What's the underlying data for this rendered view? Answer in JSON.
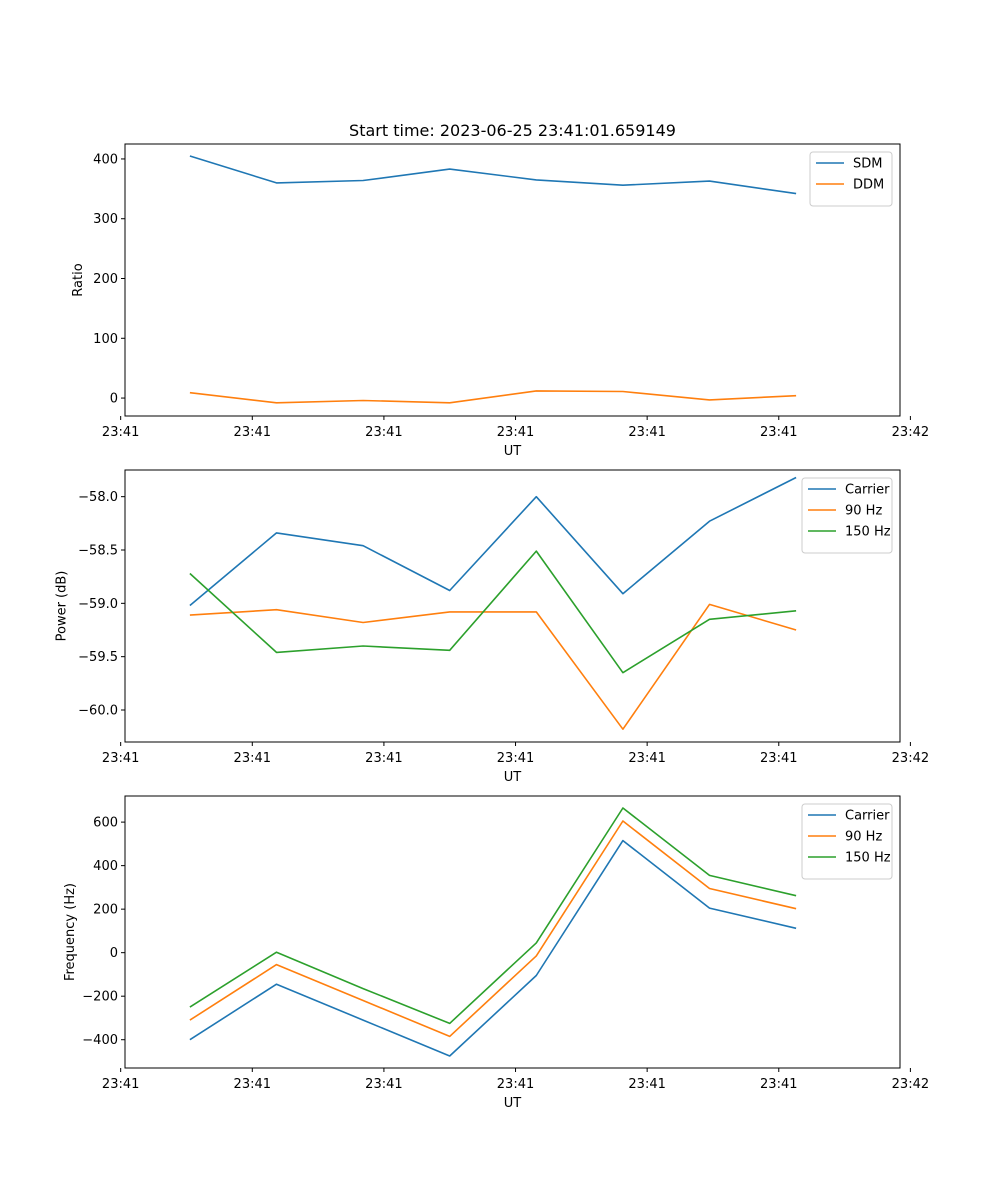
{
  "chart_data": [
    {
      "type": "line",
      "title": "Start time: 2023-06-25 23:41:01.659149",
      "xlabel": "UT",
      "ylabel": "Ratio",
      "x": [
        1,
        2,
        3,
        4,
        5,
        6,
        7,
        8
      ],
      "xlim": [
        0.25,
        9.2
      ],
      "xticks": [
        {
          "v": 0.2,
          "label": "23:41"
        },
        {
          "v": 1.72,
          "label": "23:41"
        },
        {
          "v": 3.24,
          "label": "23:41"
        },
        {
          "v": 4.76,
          "label": "23:41"
        },
        {
          "v": 6.28,
          "label": "23:41"
        },
        {
          "v": 7.8,
          "label": "23:41"
        },
        {
          "v": 9.32,
          "label": "23:42"
        }
      ],
      "ylim": [
        -30,
        425
      ],
      "yticks": [
        {
          "v": 0,
          "label": "0"
        },
        {
          "v": 100,
          "label": "100"
        },
        {
          "v": 200,
          "label": "200"
        },
        {
          "v": 300,
          "label": "300"
        },
        {
          "v": 400,
          "label": "400"
        }
      ],
      "grid": false,
      "legend": "upper right",
      "series": [
        {
          "name": "SDM",
          "color": "#1f77b4",
          "values": [
            405,
            360,
            364,
            383,
            365,
            356,
            363,
            342
          ]
        },
        {
          "name": "DDM",
          "color": "#ff7f0e",
          "values": [
            9,
            -8,
            -4,
            -8,
            12,
            11,
            -3,
            4
          ]
        }
      ]
    },
    {
      "type": "line",
      "title": "",
      "xlabel": "UT",
      "ylabel": "Power (dB)",
      "x": [
        1,
        2,
        3,
        4,
        5,
        6,
        7,
        8
      ],
      "xlim": [
        0.25,
        9.2
      ],
      "xticks": [
        {
          "v": 0.2,
          "label": "23:41"
        },
        {
          "v": 1.72,
          "label": "23:41"
        },
        {
          "v": 3.24,
          "label": "23:41"
        },
        {
          "v": 4.76,
          "label": "23:41"
        },
        {
          "v": 6.28,
          "label": "23:41"
        },
        {
          "v": 7.8,
          "label": "23:41"
        },
        {
          "v": 9.32,
          "label": "23:42"
        }
      ],
      "ylim": [
        -60.3,
        -57.75
      ],
      "yticks": [
        {
          "v": -60.0,
          "label": "−60.0"
        },
        {
          "v": -59.5,
          "label": "−59.5"
        },
        {
          "v": -59.0,
          "label": "−59.0"
        },
        {
          "v": -58.5,
          "label": "−58.5"
        },
        {
          "v": -58.0,
          "label": "−58.0"
        }
      ],
      "grid": false,
      "legend": "upper right",
      "series": [
        {
          "name": "Carrier",
          "color": "#1f77b4",
          "values": [
            -59.02,
            -58.34,
            -58.46,
            -58.88,
            -58.0,
            -58.91,
            -58.23,
            -57.82
          ]
        },
        {
          "name": "90 Hz",
          "color": "#ff7f0e",
          "values": [
            -59.11,
            -59.06,
            -59.18,
            -59.08,
            -59.08,
            -60.18,
            -59.01,
            -59.25
          ]
        },
        {
          "name": "150 Hz",
          "color": "#2ca02c",
          "values": [
            -58.72,
            -59.46,
            -59.4,
            -59.44,
            -58.51,
            -59.65,
            -59.15,
            -59.07
          ]
        }
      ]
    },
    {
      "type": "line",
      "title": "",
      "xlabel": "UT",
      "ylabel": "Frequency (Hz)",
      "x": [
        1,
        2,
        3,
        4,
        5,
        6,
        7,
        8
      ],
      "xlim": [
        0.25,
        9.2
      ],
      "xticks": [
        {
          "v": 0.2,
          "label": "23:41"
        },
        {
          "v": 1.72,
          "label": "23:41"
        },
        {
          "v": 3.24,
          "label": "23:41"
        },
        {
          "v": 4.76,
          "label": "23:41"
        },
        {
          "v": 6.28,
          "label": "23:41"
        },
        {
          "v": 7.8,
          "label": "23:41"
        },
        {
          "v": 9.32,
          "label": "23:42"
        }
      ],
      "ylim": [
        -530,
        720
      ],
      "yticks": [
        {
          "v": -400,
          "label": "−400"
        },
        {
          "v": -200,
          "label": "−200"
        },
        {
          "v": 0,
          "label": "0"
        },
        {
          "v": 200,
          "label": "200"
        },
        {
          "v": 400,
          "label": "400"
        },
        {
          "v": 600,
          "label": "600"
        }
      ],
      "grid": false,
      "legend": "upper right",
      "series": [
        {
          "name": "Carrier",
          "color": "#1f77b4",
          "values": [
            -400,
            -145,
            -310,
            -475,
            -105,
            515,
            205,
            112
          ]
        },
        {
          "name": "90 Hz",
          "color": "#ff7f0e",
          "values": [
            -310,
            -55,
            -220,
            -385,
            -15,
            605,
            295,
            202
          ]
        },
        {
          "name": "150 Hz",
          "color": "#2ca02c",
          "values": [
            -250,
            2,
            -165,
            -325,
            45,
            665,
            355,
            262
          ]
        }
      ]
    }
  ]
}
